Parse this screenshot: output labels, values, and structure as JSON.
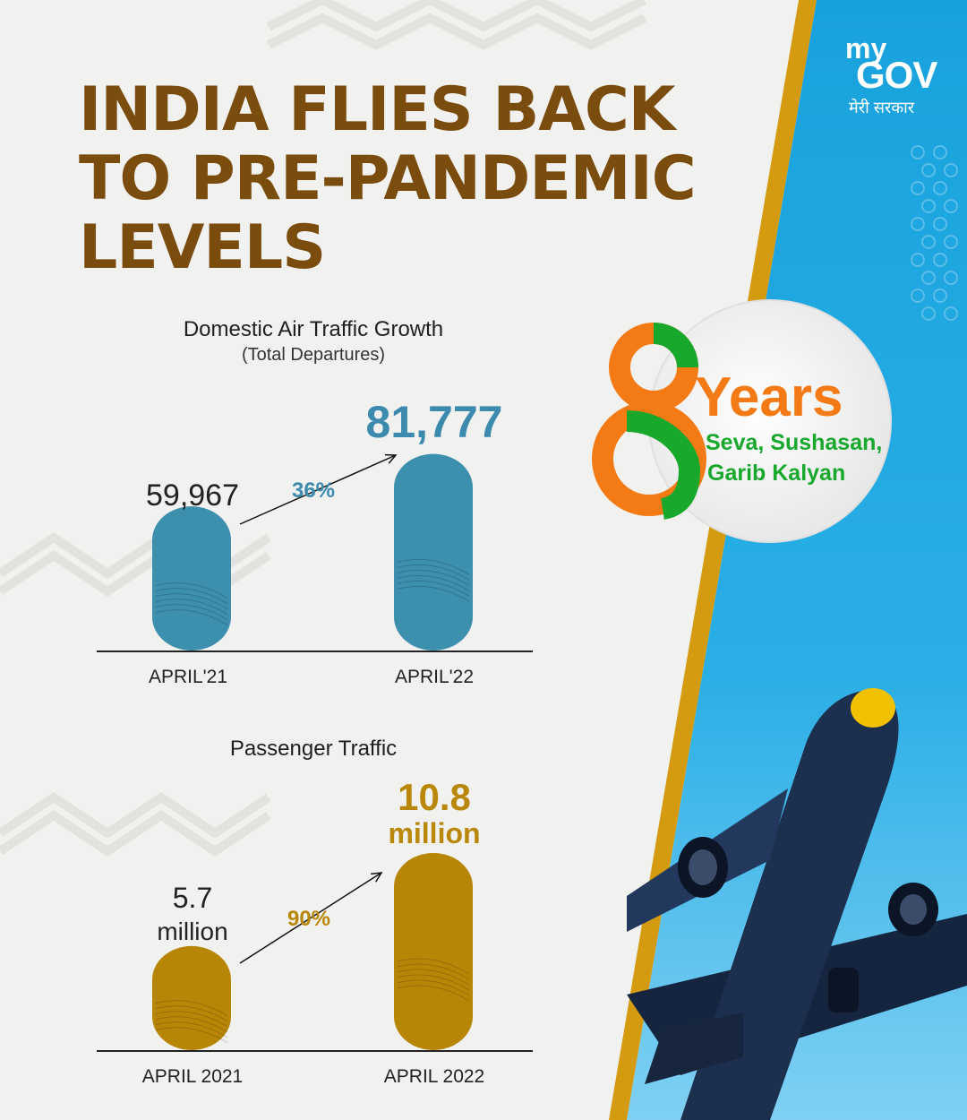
{
  "title_lines": [
    "INDIA FLIES BACK",
    "TO PRE-PANDEMIC",
    "LEVELS"
  ],
  "logo": {
    "my": "my",
    "gov": "GOV",
    "tagline": "मेरी सरकार"
  },
  "badge": {
    "numeral": "8",
    "years": "Years",
    "line1": "Seva, Sushasan,",
    "line2": "Garib Kalyan"
  },
  "colors": {
    "title": "#7a4c0e",
    "chart1_bar": "#3d8fae",
    "chart1_label": "#3c8aae",
    "chart2_bar": "#b88607",
    "chart2_label": "#b9870a",
    "sky": "#1aa6e0",
    "stripe": "#d49a10",
    "saffron": "#f47a16",
    "green": "#17a82c"
  },
  "chart_data": [
    {
      "type": "bar",
      "title": "Domestic Air Traffic Growth",
      "subtitle": "(Total Departures)",
      "categories": [
        "APRIL'21",
        "APRIL'22"
      ],
      "values": [
        59967,
        81777
      ],
      "value_labels": [
        "59,967",
        "81,777"
      ],
      "growth_label": "36%",
      "ylim": [
        0,
        82000
      ]
    },
    {
      "type": "bar",
      "title": "Passenger Traffic",
      "categories": [
        "APRIL 2021",
        "APRIL 2022"
      ],
      "values": [
        5.7,
        10.8
      ],
      "value_labels": [
        [
          "5.7",
          "million"
        ],
        [
          "10.8",
          "million"
        ]
      ],
      "growth_label": "90%",
      "ylim": [
        0,
        10.8
      ]
    }
  ]
}
